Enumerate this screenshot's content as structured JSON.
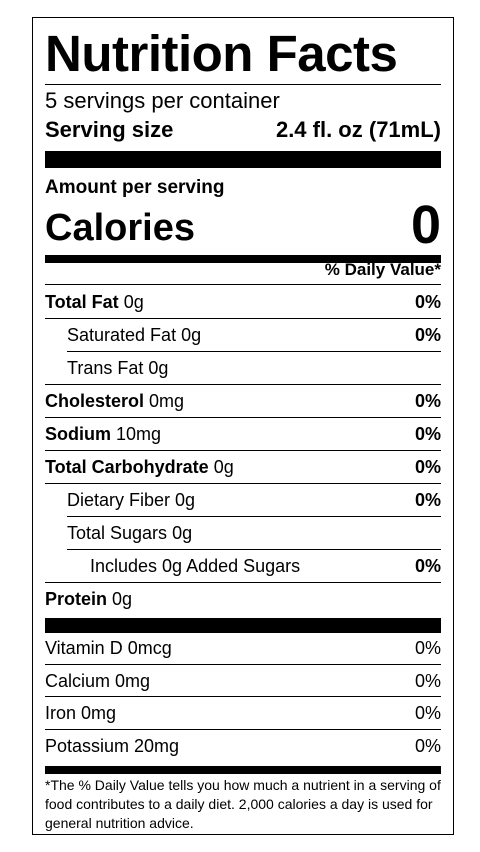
{
  "title": "Nutrition Facts",
  "servings_per_container": "5 servings per container",
  "serving_size": {
    "label": "Serving size",
    "value": "2.4 fl. oz (71mL)"
  },
  "amount_per_serving": "Amount per serving",
  "calories": {
    "label": "Calories",
    "value": "0"
  },
  "daily_value_header": "% Daily Value*",
  "nutrients": [
    {
      "name": "Total Fat",
      "amount": "0g",
      "dv": "0%",
      "bold_name": true,
      "indent": 0
    },
    {
      "name": "Saturated Fat",
      "amount": "0g",
      "dv": "0%",
      "bold_name": false,
      "indent": 1
    },
    {
      "name": "Trans Fat",
      "amount": "0g",
      "dv": "",
      "bold_name": false,
      "indent": 1
    },
    {
      "name": "Cholesterol",
      "amount": "0mg",
      "dv": "0%",
      "bold_name": true,
      "indent": 0
    },
    {
      "name": "Sodium",
      "amount": "10mg",
      "dv": "0%",
      "bold_name": true,
      "indent": 0
    },
    {
      "name": "Total Carbohydrate",
      "amount": "0g",
      "dv": "0%",
      "bold_name": true,
      "indent": 0
    },
    {
      "name": "Dietary Fiber",
      "amount": "0g",
      "dv": "0%",
      "bold_name": false,
      "indent": 1
    },
    {
      "name": "Total Sugars",
      "amount": "0g",
      "dv": "",
      "bold_name": false,
      "indent": 1
    },
    {
      "name": "Includes 0g Added Sugars",
      "amount": "",
      "dv": "0%",
      "bold_name": false,
      "indent": 2
    },
    {
      "name": "Protein",
      "amount": "0g",
      "dv": "",
      "bold_name": true,
      "indent": 0
    }
  ],
  "vitamins": [
    {
      "name": "Vitamin D 0mcg",
      "dv": "0%"
    },
    {
      "name": "Calcium 0mg",
      "dv": "0%"
    },
    {
      "name": "Iron 0mg",
      "dv": "0%"
    },
    {
      "name": "Potassium 20mg",
      "dv": "0%"
    }
  ],
  "footnote": "*The % Daily Value tells you how much a nutrient in a serving of food contributes to a daily diet. 2,000 calories a day is used for general nutrition advice."
}
